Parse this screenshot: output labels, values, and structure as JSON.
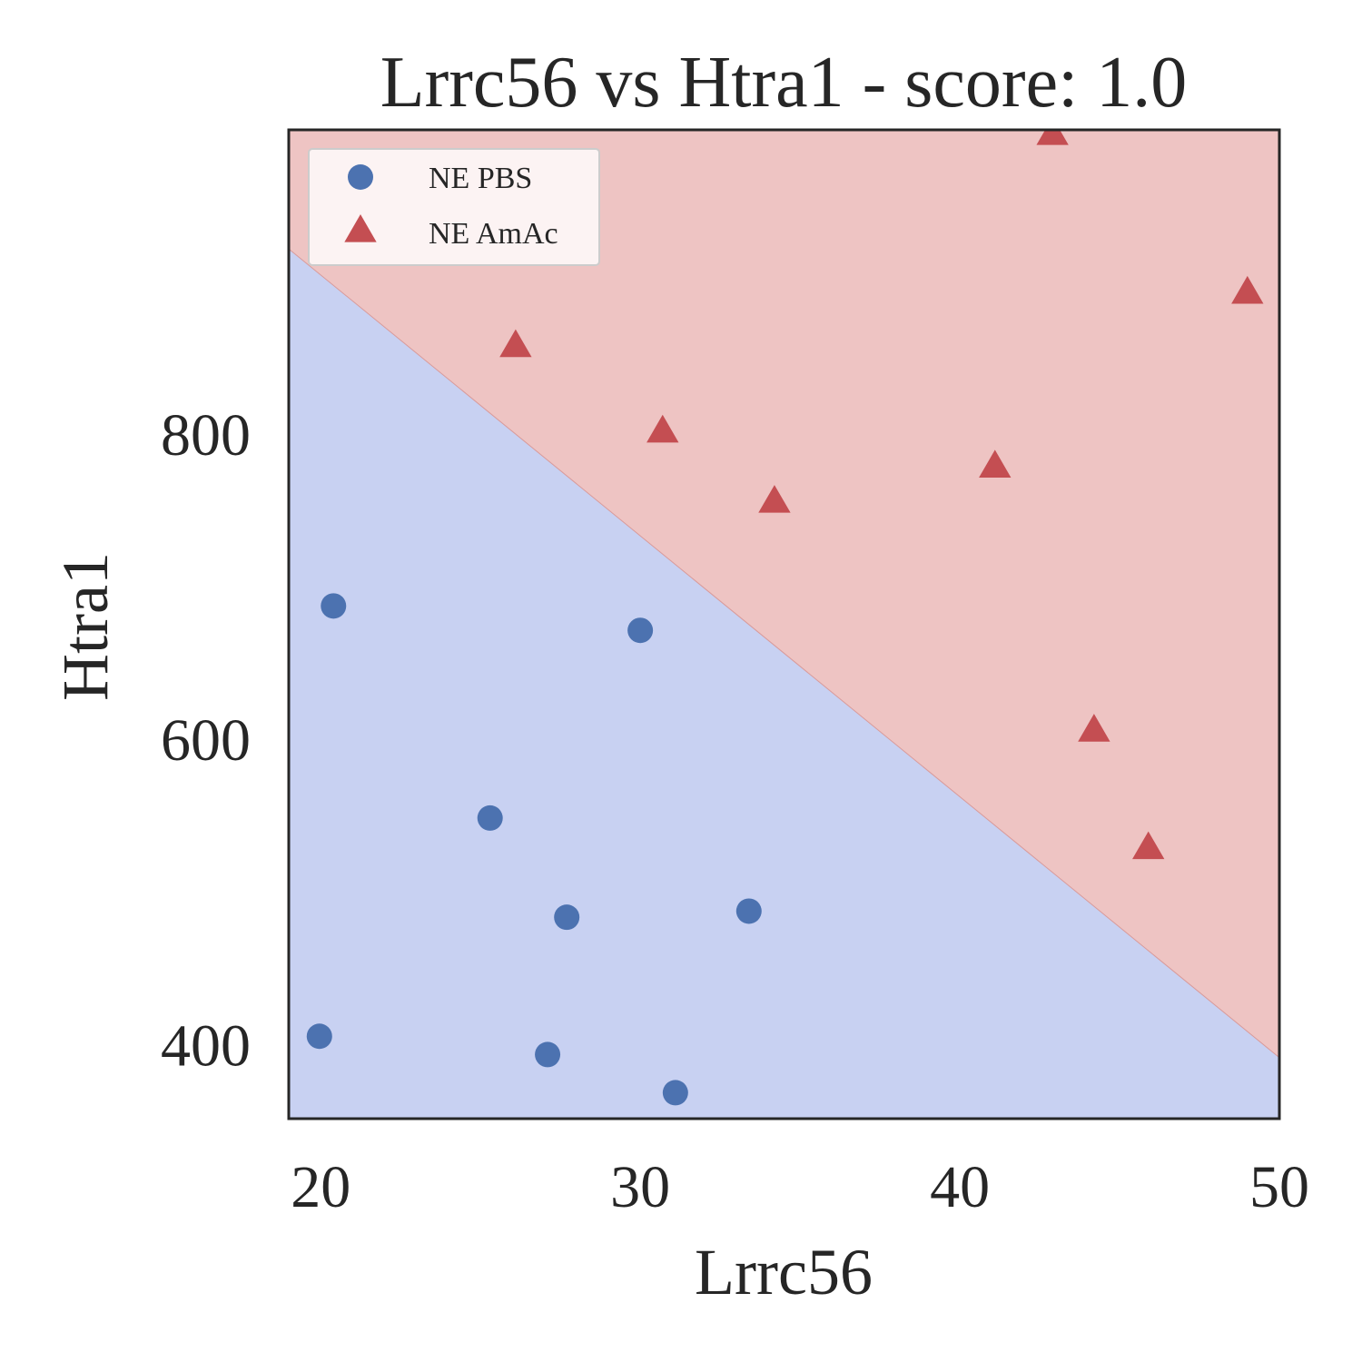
{
  "chart_data": {
    "type": "scatter",
    "title": "Lrrc56 vs Htra1 - score: 1.0",
    "xlabel": "Lrrc56",
    "ylabel": "Htra1",
    "xlim": [
      19,
      50
    ],
    "ylim": [
      352,
      1000
    ],
    "xticks": [
      20,
      30,
      40,
      50
    ],
    "yticks": [
      400,
      600,
      800
    ],
    "grid": false,
    "legend_position": "top-left",
    "decision_boundary": {
      "points": [
        [
          19,
          922
        ],
        [
          50,
          392
        ]
      ],
      "below_color": "#c8d1f2",
      "above_color": "#eec4c3",
      "line_color": "#d99a9a"
    },
    "series": [
      {
        "name": "NE PBS",
        "marker": "circle",
        "color": "#4c72b0",
        "points": [
          [
            20.4,
            688
          ],
          [
            30.0,
            672
          ],
          [
            25.3,
            549
          ],
          [
            27.7,
            484
          ],
          [
            33.4,
            488
          ],
          [
            19.96,
            406
          ],
          [
            27.1,
            394
          ],
          [
            31.1,
            369
          ]
        ]
      },
      {
        "name": "NE AmAc",
        "marker": "triangle",
        "color": "#c44e52",
        "points": [
          [
            42.9,
            997
          ],
          [
            49.0,
            893
          ],
          [
            26.1,
            858
          ],
          [
            30.7,
            802
          ],
          [
            41.1,
            779
          ],
          [
            34.2,
            756
          ],
          [
            44.2,
            606
          ],
          [
            45.9,
            529
          ]
        ]
      }
    ]
  }
}
